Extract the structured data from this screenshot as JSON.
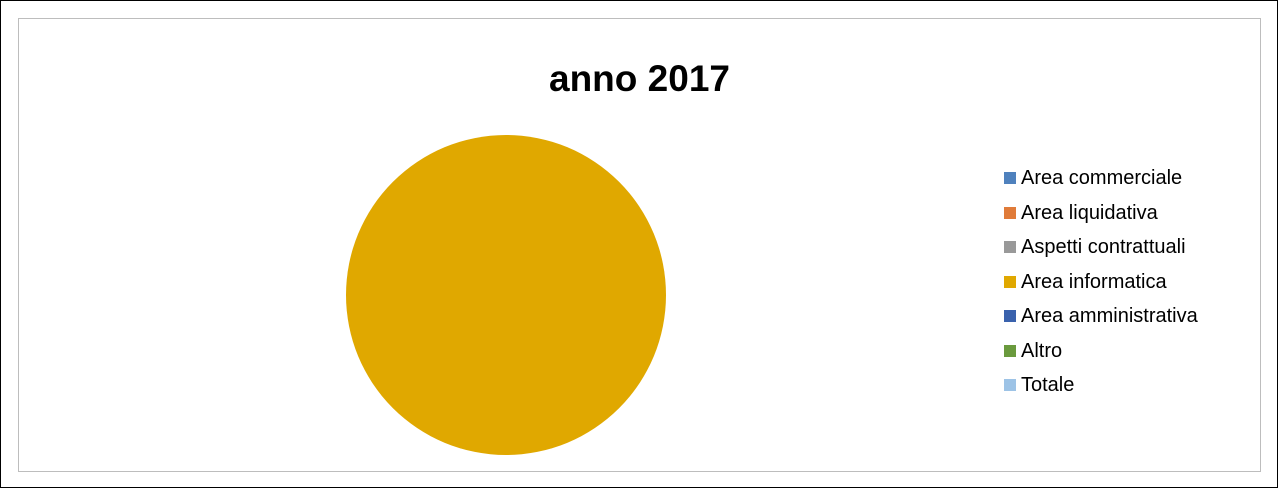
{
  "chart_data": {
    "type": "pie",
    "title": "anno 2017",
    "categories": [
      "Area commerciale",
      "Area liquidativa",
      "Aspetti contrattuali",
      "Area informatica",
      "Area amministrativa",
      "Altro",
      "Totale"
    ],
    "values": [
      0,
      0,
      0,
      1,
      0,
      0,
      0
    ],
    "colors": [
      "#4f81bd",
      "#e07b39",
      "#999999",
      "#e0a800",
      "#3a62ad",
      "#6a9a3d",
      "#9dc3e6"
    ],
    "legend_position": "right"
  }
}
